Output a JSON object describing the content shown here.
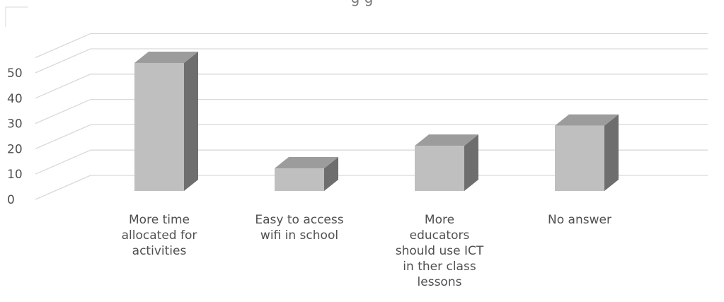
{
  "chart_data": {
    "type": "bar",
    "title": "",
    "visible_title_fragment": "g                  g",
    "categories": [
      "More time allocated for activities",
      "Easy to access wifi in school",
      "More educators should use ICT in ther class lessons",
      "No answer"
    ],
    "category_lines": [
      [
        "More time",
        "allocated for",
        "activities"
      ],
      [
        "Easy to access",
        "wifi in school"
      ],
      [
        "More",
        "educators",
        "should use ICT",
        "in ther class",
        "lessons"
      ],
      [
        "No answer"
      ]
    ],
    "values": [
      51,
      9,
      18,
      26
    ],
    "yticks": [
      0,
      10,
      20,
      30,
      40,
      50
    ],
    "ylim": [
      0,
      56
    ],
    "grid": true,
    "style": "3d-column",
    "colors": {
      "front": "#bfbfbf",
      "side": "#6e6e6e",
      "top": "#9c9c9c",
      "grid": "#d9d9d9"
    }
  }
}
